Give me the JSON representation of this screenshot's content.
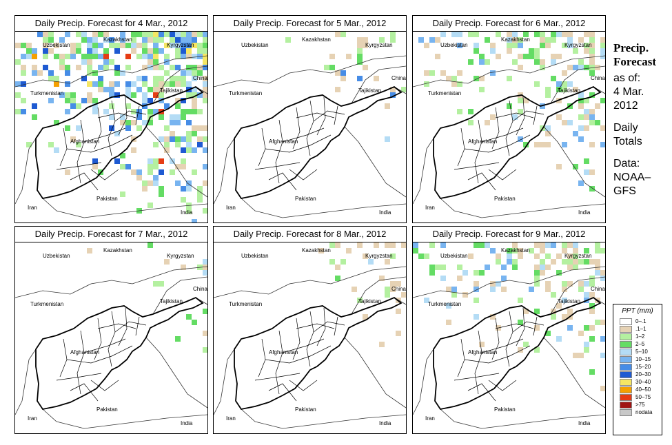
{
  "panels": [
    {
      "title": "Daily Precip. Forecast for  4 Mar., 2012",
      "intensity": "high"
    },
    {
      "title": "Daily Precip. Forecast for  5 Mar., 2012",
      "intensity": "low"
    },
    {
      "title": "Daily Precip. Forecast for  6 Mar., 2012",
      "intensity": "medium"
    },
    {
      "title": "Daily Precip. Forecast for  7 Mar., 2012",
      "intensity": "low"
    },
    {
      "title": "Daily Precip. Forecast for  8 Mar., 2012",
      "intensity": "low"
    },
    {
      "title": "Daily Precip. Forecast for  9 Mar., 2012",
      "intensity": "medium"
    }
  ],
  "map_labels": {
    "kazakhstan": "Kazakhstan",
    "uzbekistan": "Uzbekistan",
    "kyrgyzstan": "Kyrgyzstan",
    "china": "China",
    "tajikistan": "Tajikistan",
    "turkmenistan": "Turkmenistan",
    "afghanistan": "Afghanistan",
    "pakistan": "Pakistan",
    "iran": "Iran",
    "india": "India"
  },
  "side_panel": {
    "title_line1": "Precip.",
    "title_line2": "Forecast",
    "asof_line1": "as of:",
    "asof_line2": "4 Mar.",
    "asof_line3": "2012",
    "totals_line1": "Daily",
    "totals_line2": "Totals",
    "data_line1": "Data:",
    "data_line2": "NOAA–",
    "data_line3": "GFS"
  },
  "legend": {
    "title": "PPT (mm)",
    "items": [
      {
        "label": "0–.1",
        "color": "#ffffff"
      },
      {
        "label": ".1–1",
        "color": "#e6d2b4"
      },
      {
        "label": "1–2",
        "color": "#b4f0a0"
      },
      {
        "label": "2–5",
        "color": "#64dc64"
      },
      {
        "label": "5–10",
        "color": "#b4dcf5"
      },
      {
        "label": "10–15",
        "color": "#78b4f0"
      },
      {
        "label": "15–20",
        "color": "#468ce6"
      },
      {
        "label": "20–30",
        "color": "#1e5ad2"
      },
      {
        "label": "30–40",
        "color": "#f5e664"
      },
      {
        "label": "40–50",
        "color": "#f5a000"
      },
      {
        "label": "50–75",
        "color": "#e63c14"
      },
      {
        "label": ">75",
        "color": "#a01414"
      },
      {
        "label": "nodata",
        "color": "#c8c8c8"
      }
    ]
  }
}
